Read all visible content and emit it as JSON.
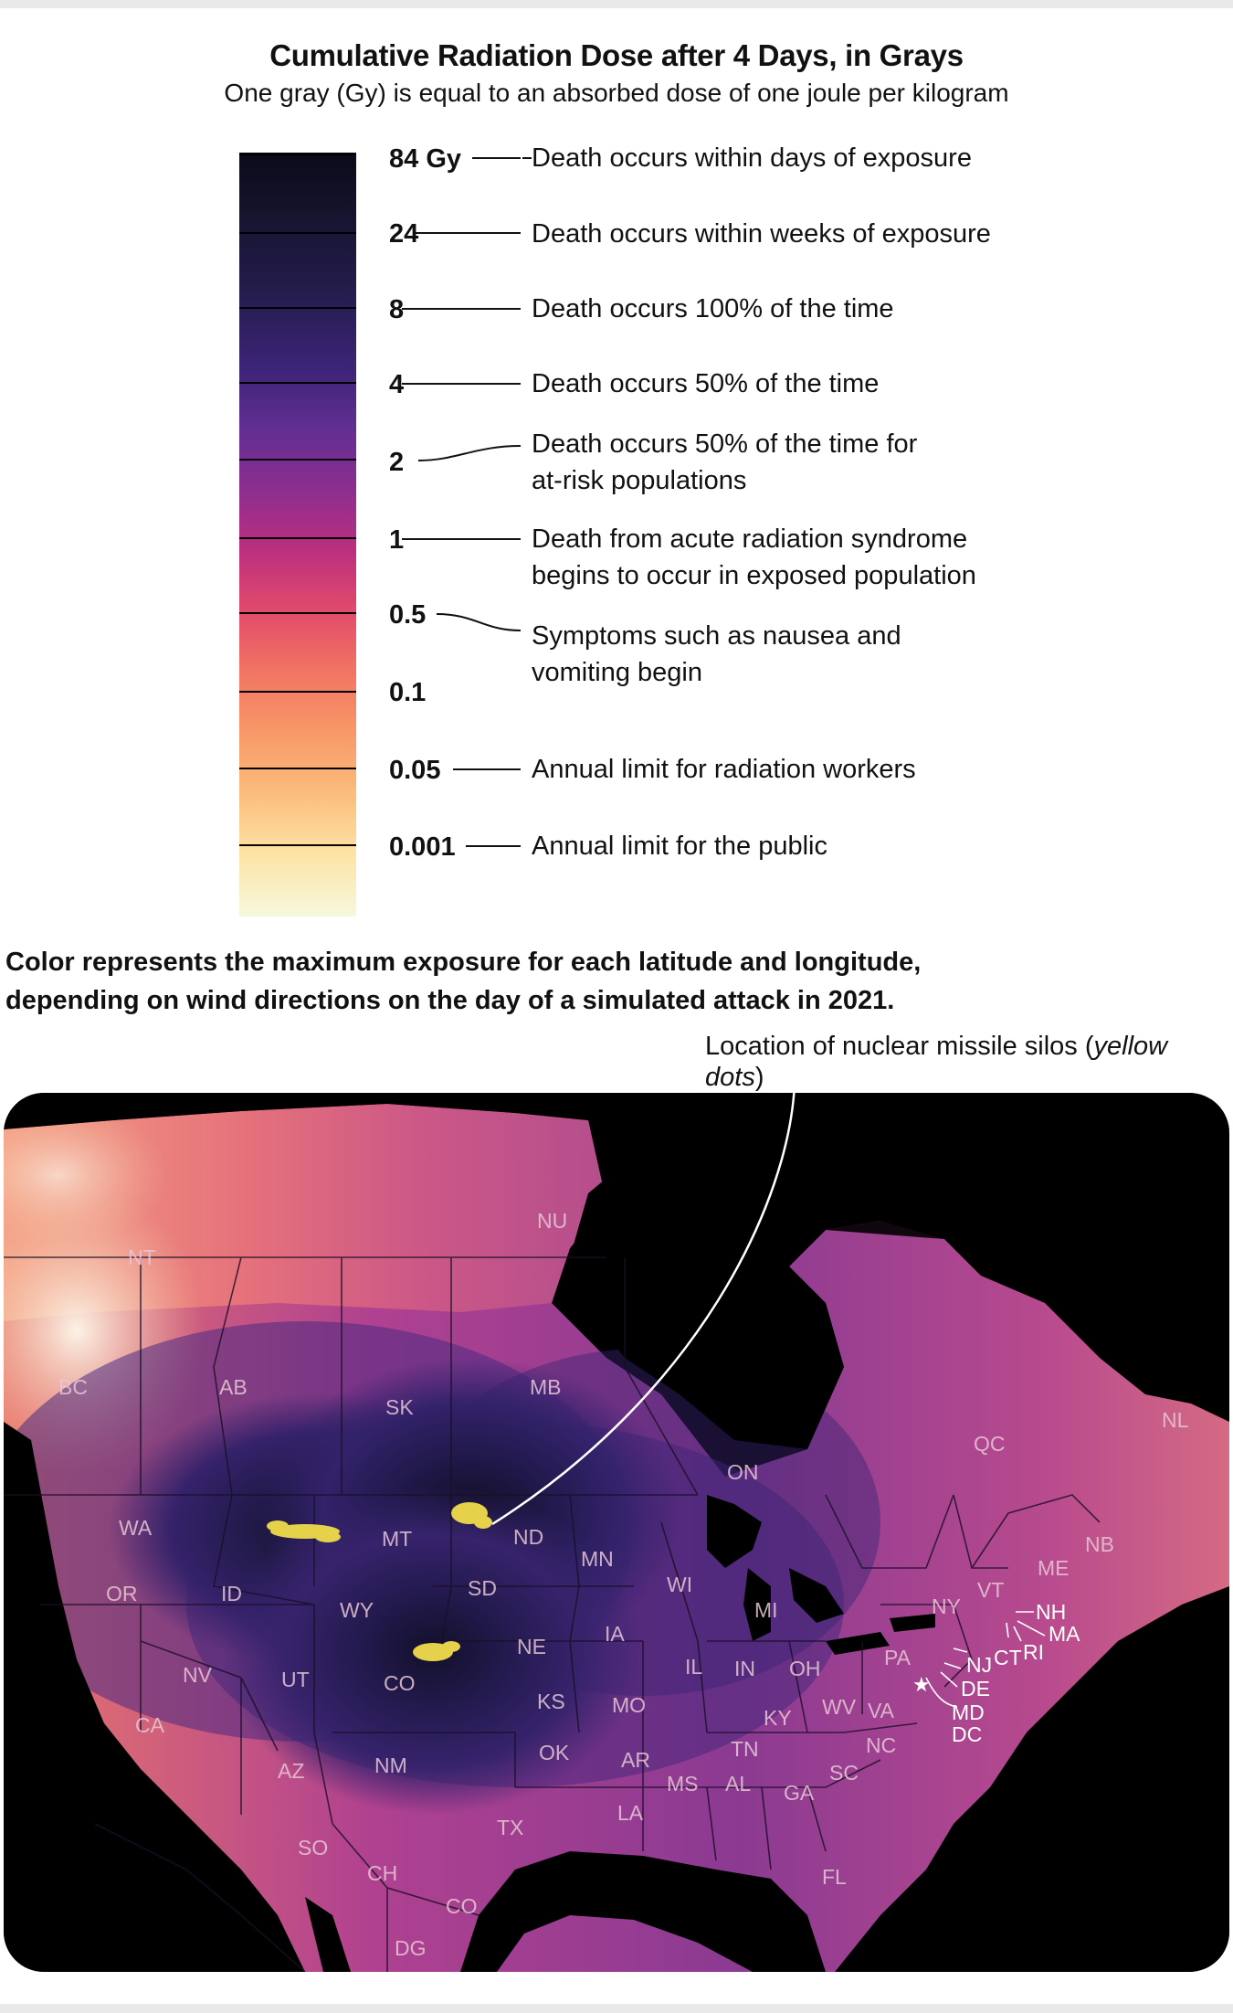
{
  "title": "Cumulative Radiation Dose after 4 Days, in Grays",
  "subtitle": "One gray (Gy) is equal to an absorbed dose of one joule per kilogram",
  "scale": [
    {
      "value": "84 Gy",
      "description": "Death occurs within days of exposure"
    },
    {
      "value": "24",
      "description": "Death occurs within weeks of exposure"
    },
    {
      "value": "8",
      "description": "Death occurs 100% of the time"
    },
    {
      "value": "4",
      "description": "Death occurs 50% of the time"
    },
    {
      "value": "2",
      "description_line1": "Death occurs 50% of the time for",
      "description_line2": "at-risk populations"
    },
    {
      "value": "1",
      "description_line1": "Death from acute radiation syndrome",
      "description_line2": "begins to occur in exposed population"
    },
    {
      "value": "0.5",
      "description_line1": "Symptoms such as nausea and",
      "description_line2": "vomiting begin"
    },
    {
      "value": "0.1"
    },
    {
      "value": "0.05",
      "description": "Annual limit for radiation workers"
    },
    {
      "value": "0.001",
      "description": "Annual limit for the public"
    }
  ],
  "note_line1": "Color represents the maximum exposure for each latitude and longitude,",
  "note_line2": "depending on wind directions on the day of a simulated attack in 2021.",
  "silo_note_text": "Location of nuclear missile silos (",
  "silo_note_italic": "yellow dots",
  "silo_note_close": ")",
  "colors": {
    "silo": "#e6d24a",
    "high_dose": "#2a1f5a",
    "low_dose": "#f7f0d8",
    "mid_dose": "#c8407c"
  },
  "regions": {
    "NT": "NT",
    "NU": "NU",
    "BC": "BC",
    "AB": "AB",
    "SK": "SK",
    "MB": "MB",
    "ON": "ON",
    "QC": "QC",
    "NL": "NL",
    "NB": "NB",
    "WA": "WA",
    "OR": "OR",
    "CA": "CA",
    "ID": "ID",
    "NV": "NV",
    "MT": "MT",
    "WY": "WY",
    "UT": "UT",
    "AZ": "AZ",
    "CO": "CO",
    "NM": "NM",
    "ND": "ND",
    "SD": "SD",
    "NE": "NE",
    "KS": "KS",
    "OK": "OK",
    "TX": "TX",
    "MN": "MN",
    "IA": "IA",
    "MO": "MO",
    "AR": "AR",
    "LA": "LA",
    "WI": "WI",
    "IL": "IL",
    "MI": "MI",
    "IN": "IN",
    "OH": "OH",
    "KY": "KY",
    "TN": "TN",
    "MS": "MS",
    "AL": "AL",
    "GA": "GA",
    "FL": "FL",
    "SC": "SC",
    "NC": "NC",
    "VA": "VA",
    "WV": "WV",
    "PA": "PA",
    "NY": "NY",
    "VT": "VT",
    "ME": "ME",
    "NH": "NH",
    "MA": "MA",
    "RI": "RI",
    "CT": "CT",
    "NJ": "NJ",
    "DE": "DE",
    "MD": "MD",
    "DC": "DC",
    "SO": "SO",
    "CH": "CH",
    "CO_MX": "CO",
    "DG": "DG"
  }
}
